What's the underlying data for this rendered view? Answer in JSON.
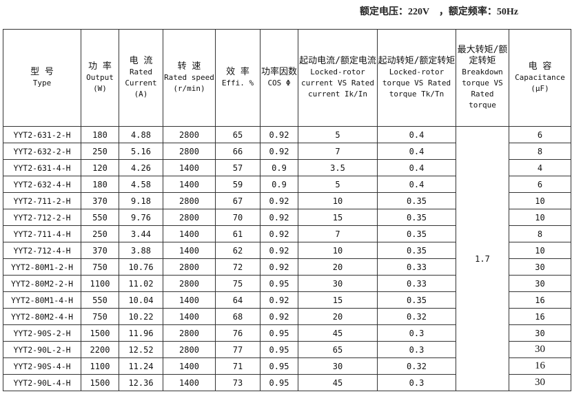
{
  "note": "额定电压：220V　，额定频率：50Hz",
  "headers": [
    {
      "cn": "型 号",
      "en": "Type"
    },
    {
      "cn": "功 率",
      "en": "Output (W)"
    },
    {
      "cn": "电 流",
      "en": "Rated Current (A)"
    },
    {
      "cn": "转 速",
      "en": "Rated speed (r/min)"
    },
    {
      "cn": "效 率",
      "en": "Effi. %"
    },
    {
      "cn": "功率因数",
      "en": "COS Φ"
    },
    {
      "cn": "起动电流/额定电流",
      "en": "Locked-rotor current VS Rated current Ik/In"
    },
    {
      "cn": "起动转矩/额定转矩",
      "en": "Locked-rotor torque VS Rated torque Tk/Tn"
    },
    {
      "cn": "最大转矩/额定转矩",
      "en": "Breakdown torque VS Rated torque"
    },
    {
      "cn": "电 容",
      "en": "Capacitance (μF)"
    }
  ],
  "breakdown": "1.7",
  "rows": [
    [
      "YYT2-631-2-H",
      "180",
      "4.88",
      "2800",
      "65",
      "0.92",
      "5",
      "0.4",
      "6"
    ],
    [
      "YYT2-632-2-H",
      "250",
      "5.16",
      "2800",
      "66",
      "0.92",
      "7",
      "0.4",
      "8"
    ],
    [
      "YYT2-631-4-H",
      "120",
      "4.26",
      "1400",
      "57",
      "0.9",
      "3.5",
      "0.4",
      "4"
    ],
    [
      "YYT2-632-4-H",
      "180",
      "4.58",
      "1400",
      "59",
      "0.9",
      "5",
      "0.4",
      "6"
    ],
    [
      "YYT2-711-2-H",
      "370",
      "9.18",
      "2800",
      "67",
      "0.92",
      "10",
      "0.35",
      "10"
    ],
    [
      "YYT2-712-2-H",
      "550",
      "9.76",
      "2800",
      "70",
      "0.92",
      "15",
      "0.35",
      "10"
    ],
    [
      "YYT2-711-4-H",
      "250",
      "3.44",
      "1400",
      "61",
      "0.92",
      "7",
      "0.35",
      "8"
    ],
    [
      "YYT2-712-4-H",
      "370",
      "3.88",
      "1400",
      "62",
      "0.92",
      "10",
      "0.35",
      "10"
    ],
    [
      "YYT2-80M1-2-H",
      "750",
      "10.76",
      "2800",
      "72",
      "0.92",
      "20",
      "0.33",
      "30"
    ],
    [
      "YYT2-80M2-2-H",
      "1100",
      "11.02",
      "2800",
      "75",
      "0.95",
      "30",
      "0.33",
      "30"
    ],
    [
      "YYT2-80M1-4-H",
      "550",
      "10.04",
      "1400",
      "64",
      "0.92",
      "15",
      "0.35",
      "16"
    ],
    [
      "YYT2-80M2-4-H",
      "750",
      "10.22",
      "1400",
      "68",
      "0.92",
      "20",
      "0.32",
      "16"
    ],
    [
      "YYT2-90S-2-H",
      "1500",
      "11.96",
      "2800",
      "76",
      "0.95",
      "45",
      "0.3",
      "30"
    ],
    [
      "YYT2-90L-2-H",
      "2200",
      "12.52",
      "2800",
      "77",
      "0.95",
      "65",
      "0.3",
      "30"
    ],
    [
      "YYT2-90S-4-H",
      "1100",
      "11.24",
      "1400",
      "71",
      "0.95",
      "30",
      "0.32",
      "16"
    ],
    [
      "YYT2-90L-4-H",
      "1500",
      "12.36",
      "1400",
      "73",
      "0.95",
      "45",
      "0.3",
      "30"
    ]
  ]
}
